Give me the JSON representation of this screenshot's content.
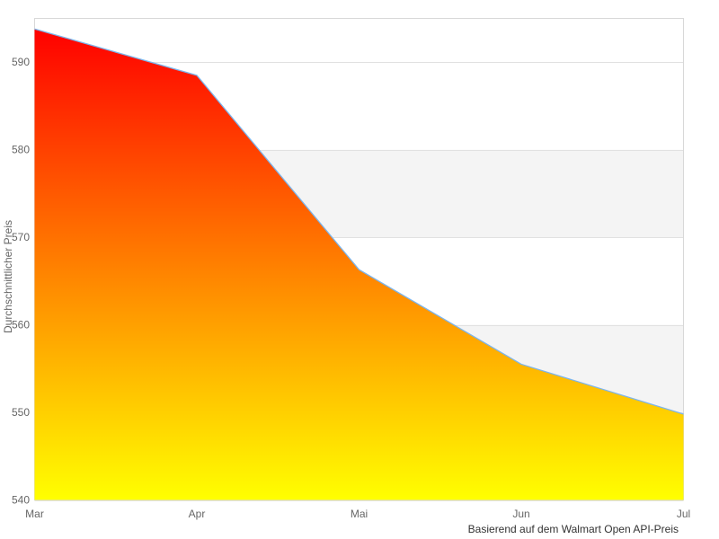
{
  "chart_data": {
    "type": "area",
    "title": "",
    "categories": [
      "Mar",
      "Apr",
      "Mai",
      "Jun",
      "Jul"
    ],
    "values": [
      593.8,
      588.5,
      566.3,
      555.5,
      549.8
    ],
    "xlabel": "",
    "ylabel": "Durchschnittlicher Preis",
    "ylim": [
      540,
      595
    ],
    "yticks": [
      540,
      550,
      560,
      570,
      580,
      590
    ],
    "grid": true,
    "alternate_bands": [
      [
        550,
        560
      ],
      [
        570,
        580
      ]
    ],
    "legend": "none",
    "markers": "none",
    "caption": "Basierend auf dem Walmart Open API-Preis",
    "colors": {
      "line": "#7cb5ec",
      "gradient_top": "#ff0000",
      "gradient_bottom": "#ffff00",
      "band": "#f4f4f4",
      "gridline": "#e1e1e1",
      "plot_border": "#d8d8d8",
      "tick_label": "#666666",
      "axis_title": "#666666",
      "caption_text": "#333333",
      "background": "#ffffff"
    }
  }
}
